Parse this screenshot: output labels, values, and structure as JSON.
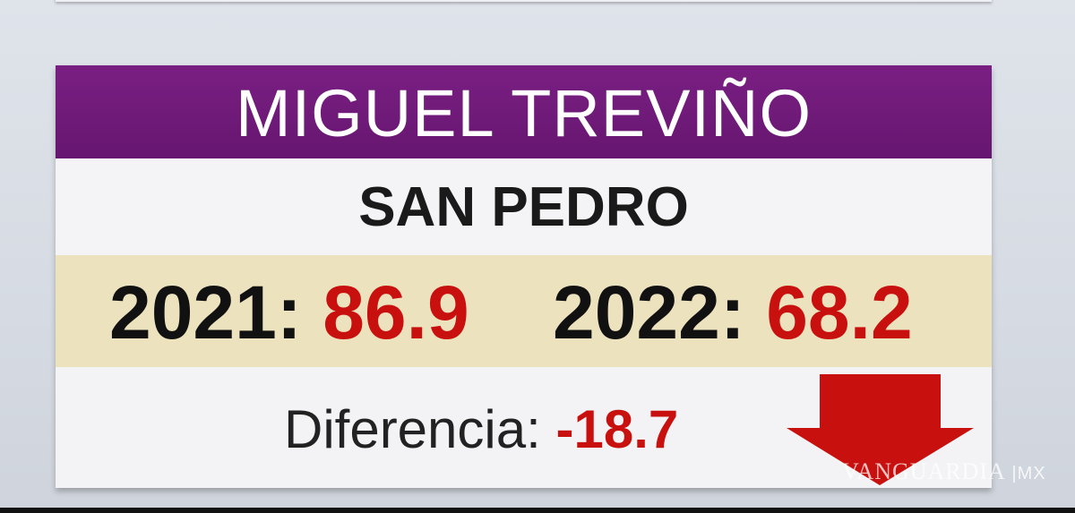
{
  "header": {
    "name": "MIGUEL TREVIÑO"
  },
  "location": "SAN PEDRO",
  "scores": [
    {
      "year_label": "2021:",
      "value": "86.9"
    },
    {
      "year_label": "2022:",
      "value": "68.2"
    }
  ],
  "difference": {
    "label": "Diferencia:",
    "value": "-18.7",
    "icon": "down-arrow-icon"
  },
  "watermark": {
    "brand": "VANGUARDIA",
    "suffix": "MX"
  },
  "colors": {
    "header_bg": "#6e1a78",
    "year_band_bg": "#ece3be",
    "accent_red": "#c8110f"
  }
}
